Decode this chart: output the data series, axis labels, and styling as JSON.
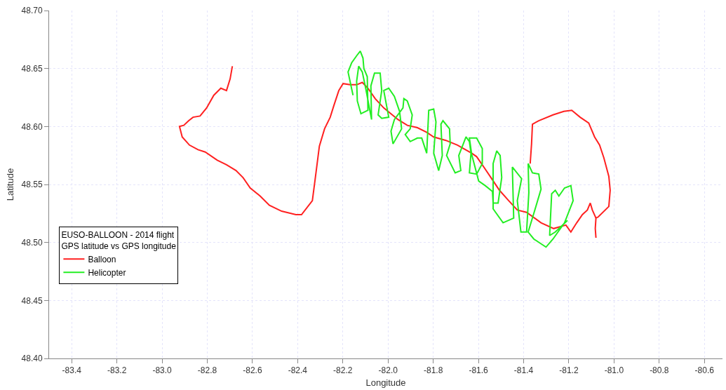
{
  "chart_data": {
    "type": "line",
    "xlabel": "Longitude",
    "ylabel": "Latitude",
    "legend_title": "EUSO-BALLOON - 2014 flight\nGPS latitude vs GPS longitude",
    "legend": "left",
    "grid": true,
    "marker": "none",
    "line_style": "solid",
    "xlim": [
      -83.5,
      -80.52
    ],
    "ylim": [
      48.4,
      48.7
    ],
    "xticks": [
      -83.4,
      -83.2,
      {
        "value": -83.0,
        "label": "-83.0"
      },
      -82.8,
      -82.6,
      -82.4,
      -82.2,
      {
        "value": -82.0,
        "label": "-82.0"
      },
      -81.8,
      -81.6,
      -81.4,
      -81.2,
      {
        "value": -81.0,
        "label": "-81.0"
      },
      -80.8,
      -80.6
    ],
    "yticks": [
      {
        "value": 48.4,
        "label": "48.40"
      },
      48.45,
      {
        "value": 48.5,
        "label": "48.50"
      },
      48.55,
      {
        "value": 48.6,
        "label": "48.60"
      },
      48.65,
      {
        "value": 48.7,
        "label": "48.70"
      }
    ],
    "series": [
      {
        "name": "Balloon",
        "color": "#ff2020",
        "x": [
          -81.371,
          -81.365,
          -81.361,
          -81.333,
          -81.27,
          -81.222,
          -81.187,
          -81.15,
          -81.112,
          -81.086,
          -81.064,
          -81.045,
          -81.023,
          -81.017,
          -81.023,
          -81.07,
          -81.08,
          -81.083,
          -81.08,
          null,
          -81.08,
          -81.096,
          -81.105,
          -81.118,
          -81.14,
          -81.165,
          -81.191,
          -81.213,
          -81.267,
          -81.323,
          -81.387,
          -81.428,
          -81.466,
          -81.507,
          -81.538,
          -81.576,
          -81.608,
          -81.63,
          -81.693,
          -81.744,
          -81.798,
          -81.829,
          -81.87,
          -81.915,
          -81.956,
          -81.987,
          -82.019,
          -82.057,
          -82.089,
          -82.114,
          -82.139,
          -82.168,
          -82.199,
          -82.218,
          -82.24,
          -82.256,
          -82.281,
          -82.304,
          -82.319,
          -82.335,
          -82.383,
          -82.408,
          -82.471,
          -82.525,
          -82.566,
          -82.61,
          -82.642,
          -82.673,
          -82.715,
          -82.756,
          -82.809,
          -82.841,
          -82.879,
          -82.911,
          -82.923,
          -82.904,
          -82.882,
          -82.863,
          -82.832,
          -82.803,
          -82.771,
          -82.74,
          -82.715,
          -82.699,
          -82.689
        ],
        "values": [
          48.568,
          48.585,
          48.602,
          48.605,
          48.61,
          48.613,
          48.614,
          48.608,
          48.603,
          48.591,
          48.584,
          48.573,
          48.557,
          48.545,
          48.531,
          48.522,
          48.521,
          48.512,
          48.504,
          null,
          48.521,
          48.528,
          48.534,
          48.528,
          48.524,
          48.517,
          48.509,
          48.515,
          48.512,
          48.517,
          48.526,
          48.528,
          48.536,
          48.545,
          48.554,
          48.565,
          48.574,
          48.577,
          48.584,
          48.588,
          48.591,
          48.595,
          48.599,
          48.601,
          48.606,
          48.611,
          48.616,
          48.624,
          48.633,
          48.638,
          48.636,
          48.636,
          48.637,
          48.631,
          48.618,
          48.608,
          48.598,
          48.583,
          48.56,
          48.536,
          48.524,
          48.524,
          48.527,
          48.532,
          48.54,
          48.547,
          48.556,
          48.562,
          48.567,
          48.571,
          48.578,
          48.58,
          48.584,
          48.591,
          48.6,
          48.601,
          48.605,
          48.608,
          48.609,
          48.616,
          48.627,
          48.633,
          48.631,
          48.641,
          48.652
        ]
      },
      {
        "name": "Helicopter",
        "color": "#22ee22",
        "x": [
          -82.155,
          -82.177,
          -82.161,
          -82.139,
          -82.123,
          -82.111,
          -82.107,
          -82.092,
          -82.089,
          -82.12,
          -82.136,
          -82.139,
          -82.13,
          -82.114,
          -82.098,
          -82.073,
          -82.076,
          -82.06,
          -82.035,
          -82.028,
          -82.044,
          -82.028,
          -81.997,
          -82.019,
          -81.997,
          -81.972,
          -81.949,
          -81.94,
          -81.978,
          -81.987,
          -81.972,
          -81.934,
          -81.93,
          -81.915,
          -81.893,
          -81.902,
          -81.924,
          -81.902,
          -81.87,
          -81.851,
          -81.829,
          -81.82,
          -81.798,
          -81.788,
          -81.798,
          -81.776,
          -81.76,
          -81.766,
          -81.757,
          -81.728,
          -81.725,
          -81.741,
          -81.703,
          -81.678,
          -81.687,
          -81.655,
          -81.64,
          -81.633,
          -81.64,
          -81.608,
          -81.583,
          -81.583,
          -81.608,
          -81.64,
          -81.63,
          -81.599,
          -81.57,
          -81.538,
          -81.535,
          -81.513,
          -81.497,
          -81.504,
          -81.519,
          -81.535,
          -81.535,
          -81.491,
          -81.444,
          -81.45,
          -81.409,
          -81.428,
          -81.412,
          -81.387,
          -81.377,
          -81.38,
          -81.361,
          -81.333,
          -81.323,
          -81.355,
          -81.38,
          -81.355,
          -81.301,
          -81.27,
          -81.219,
          -81.181,
          -81.191,
          -81.219,
          -81.244,
          -81.26,
          -81.276,
          -81.285,
          -81.26,
          -81.206
        ],
        "values": [
          48.627,
          48.647,
          48.655,
          48.661,
          48.665,
          48.659,
          48.65,
          48.643,
          48.614,
          48.611,
          48.622,
          48.639,
          48.652,
          48.647,
          48.632,
          48.606,
          48.635,
          48.646,
          48.646,
          48.631,
          48.61,
          48.607,
          48.608,
          48.631,
          48.633,
          48.626,
          48.613,
          48.598,
          48.585,
          48.596,
          48.606,
          48.616,
          48.624,
          48.622,
          48.61,
          48.598,
          48.593,
          48.587,
          48.59,
          48.59,
          48.577,
          48.614,
          48.615,
          48.604,
          48.577,
          48.562,
          48.575,
          48.602,
          48.605,
          48.598,
          48.585,
          48.575,
          48.56,
          48.562,
          48.575,
          48.591,
          48.587,
          48.577,
          48.56,
          48.559,
          48.568,
          48.581,
          48.59,
          48.59,
          48.576,
          48.553,
          48.549,
          48.544,
          48.534,
          48.534,
          48.556,
          48.575,
          48.579,
          48.568,
          48.529,
          48.517,
          48.521,
          48.565,
          48.555,
          48.536,
          48.509,
          48.509,
          48.543,
          48.568,
          48.56,
          48.559,
          48.546,
          48.525,
          48.509,
          48.503,
          48.496,
          48.503,
          48.517,
          48.536,
          48.549,
          48.547,
          48.54,
          48.545,
          48.542,
          48.506,
          48.509,
          48.519
        ]
      }
    ]
  }
}
